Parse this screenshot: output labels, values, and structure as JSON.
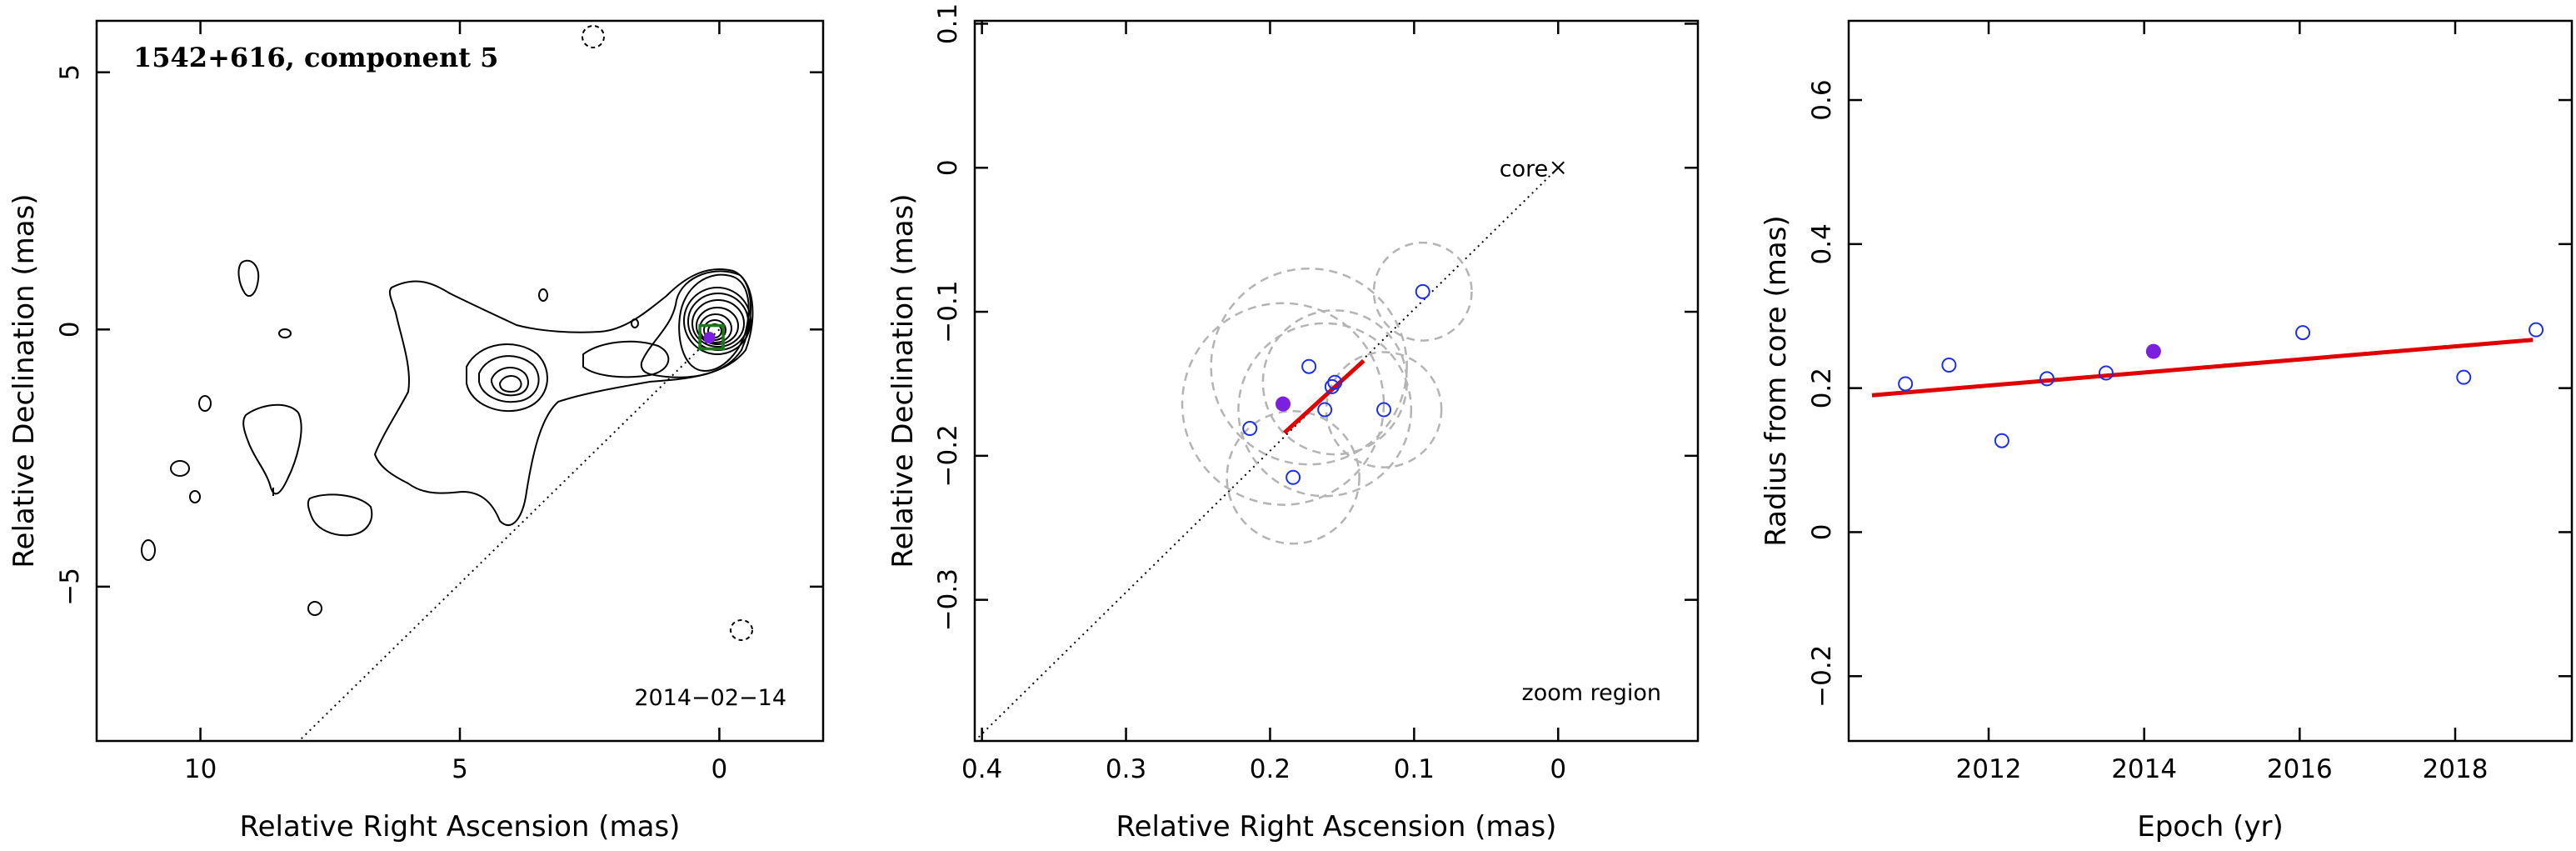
{
  "chart_data": [
    {
      "type": "contour",
      "title": "1542+616, component 5",
      "annotation": "2014−02−14",
      "xlabel": "Relative Right Ascension (mas)",
      "ylabel": "Relative Declination (mas)",
      "xlim": [
        12.0,
        -2.0
      ],
      "ylim": [
        -8.0,
        6.0
      ],
      "xticks": [
        10,
        5,
        0
      ],
      "yticks": [
        5,
        0,
        -5
      ],
      "xtick_labels": [
        "10",
        "5",
        "0"
      ],
      "ytick_labels": [
        "5",
        "0",
        "−5"
      ],
      "component_marker": {
        "x": 0.15,
        "y": -0.15,
        "shape": "square",
        "color": "#1a7a1a"
      },
      "component_point": {
        "x": 0.19,
        "y": -0.16,
        "color": "#7b1fe0"
      },
      "reference_line": {
        "from": [
          0.0,
          0.0
        ],
        "to": [
          8.1,
          -8.0
        ],
        "style": "dotted"
      }
    },
    {
      "type": "scatter",
      "annotation": "zoom region",
      "core_label": "core",
      "xlabel": "Relative Right Ascension (mas)",
      "ylabel": "Relative Declination (mas)",
      "xlim": [
        0.405,
        -0.097
      ],
      "ylim": [
        -0.398,
        0.102
      ],
      "xticks": [
        0.4,
        0.3,
        0.2,
        0.1,
        0.0
      ],
      "yticks": [
        0.1,
        0.0,
        -0.1,
        -0.2,
        -0.3
      ],
      "xtick_labels": [
        "0.4",
        "0.3",
        "0.2",
        "0.1",
        "0"
      ],
      "ytick_labels": [
        "0.1",
        "0",
        "−0.1",
        "−0.2",
        "−0.3"
      ],
      "points": [
        {
          "x": 0.094,
          "y": -0.086
        },
        {
          "x": 0.173,
          "y": -0.138
        },
        {
          "x": 0.155,
          "y": -0.149
        },
        {
          "x": 0.157,
          "y": -0.152
        },
        {
          "x": 0.162,
          "y": -0.168
        },
        {
          "x": 0.121,
          "y": -0.168
        },
        {
          "x": 0.214,
          "y": -0.181
        },
        {
          "x": 0.184,
          "y": -0.215
        }
      ],
      "highlight_point": {
        "x": 0.191,
        "y": -0.164
      },
      "error_circles": [
        {
          "x": 0.094,
          "y": -0.086,
          "r": 0.034
        },
        {
          "x": 0.173,
          "y": -0.138,
          "r": 0.068
        },
        {
          "x": 0.155,
          "y": -0.149,
          "r": 0.05
        },
        {
          "x": 0.162,
          "y": -0.168,
          "r": 0.06
        },
        {
          "x": 0.121,
          "y": -0.168,
          "r": 0.04
        },
        {
          "x": 0.191,
          "y": -0.164,
          "r": 0.07
        },
        {
          "x": 0.184,
          "y": -0.215,
          "r": 0.046
        }
      ],
      "fit_line": {
        "from": [
          0.19,
          -0.184
        ],
        "to": [
          0.135,
          -0.134
        ],
        "color": "#e00000"
      },
      "reference_line": {
        "from": [
          0.0,
          0.0
        ],
        "to": [
          0.405,
          -0.398
        ],
        "style": "dotted"
      },
      "core_marker": {
        "x": 0.0,
        "y": 0.0,
        "shape": "x"
      }
    },
    {
      "type": "scatter",
      "xlabel": "Epoch (yr)",
      "ylabel": "Radius from core (mas)",
      "xlim": [
        2010.2,
        2019.5
      ],
      "ylim": [
        -0.29,
        0.71
      ],
      "xticks": [
        2012,
        2014,
        2016,
        2018
      ],
      "yticks": [
        -0.2,
        0,
        0.2,
        0.4,
        0.6
      ],
      "xtick_labels": [
        "2012",
        "2014",
        "2016",
        "2018"
      ],
      "ytick_labels": [
        "−0.2",
        "0",
        "0.2",
        "0.4",
        "0.6"
      ],
      "points": [
        {
          "x": 2010.93,
          "y": 0.206
        },
        {
          "x": 2011.49,
          "y": 0.232
        },
        {
          "x": 2012.17,
          "y": 0.127
        },
        {
          "x": 2012.75,
          "y": 0.213
        },
        {
          "x": 2013.51,
          "y": 0.221
        },
        {
          "x": 2016.04,
          "y": 0.277
        },
        {
          "x": 2018.11,
          "y": 0.215
        },
        {
          "x": 2019.04,
          "y": 0.281
        }
      ],
      "highlight_point": {
        "x": 2014.12,
        "y": 0.251
      },
      "fit_line": {
        "from": [
          2010.5,
          0.19
        ],
        "to": [
          2019.0,
          0.267
        ],
        "color": "#e00000"
      }
    }
  ]
}
